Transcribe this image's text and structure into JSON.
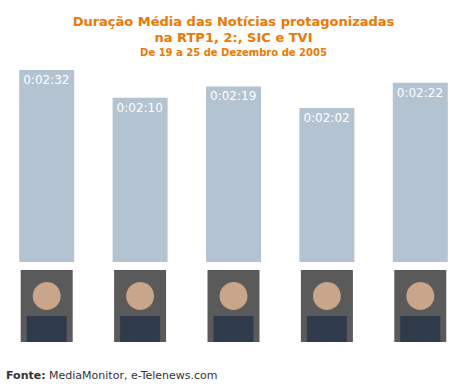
{
  "chart_data": {
    "type": "bar",
    "title": "Duração Média das Notícias protagonizadas\nna RTP1, 2:, SIC e TVI",
    "subtitle": "De 19 a 25 de Dezembro de 2005",
    "categories": [
      null,
      null,
      null,
      null,
      null
    ],
    "values": [
      152,
      130,
      139,
      122,
      142
    ],
    "value_labels": [
      "0:02:32",
      "0:02:10",
      "0:02:19",
      "0:02:02",
      "0:02:22"
    ],
    "data_labels": true,
    "color": "#b4c3d2",
    "ylim": [
      0,
      152
    ],
    "grid": false,
    "tick_labels": false,
    "annotations": [
      "Fonte: MediaMonitor, e-Telenews.com"
    ]
  }
}
